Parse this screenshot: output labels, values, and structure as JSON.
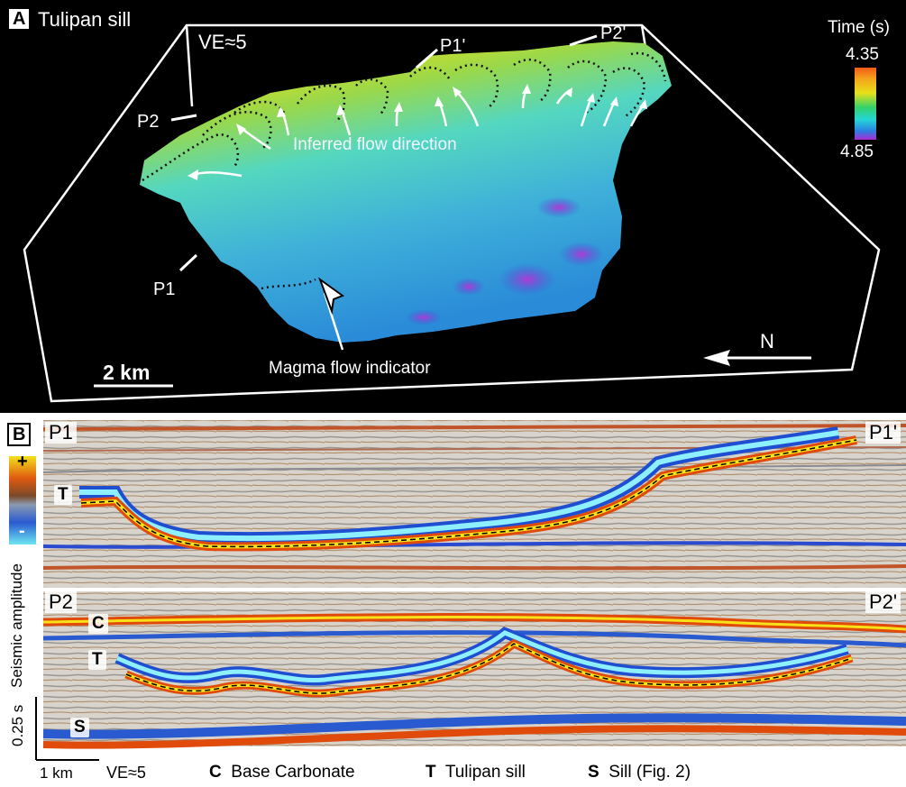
{
  "panel_a": {
    "label": "A",
    "title": "Tulipan sill",
    "ve": "VE≈5",
    "colorbar": {
      "title": "Time (s)",
      "top": "4.35",
      "bottom": "4.85"
    },
    "profile_labels": {
      "p1": "P1",
      "p1p": "P1'",
      "p2": "P2",
      "p2p": "P2'"
    },
    "annotation_flow": "Inferred flow direction",
    "annotation_indicator": "Magma flow indicator",
    "scale": "2 km",
    "north": "N"
  },
  "panel_b": {
    "label": "B",
    "polarity": {
      "plus": "+",
      "minus": "-"
    },
    "amplitude_label": "Seismic  amplitude",
    "section1": {
      "left": "P1",
      "right": "P1'",
      "tag_t": "T"
    },
    "section2": {
      "left": "P2",
      "right": "P2'",
      "tag_c": "C",
      "tag_t": "T",
      "tag_s": "S"
    },
    "time_scale": "0.25 s",
    "km_scale": "1 km",
    "ve": "VE≈5",
    "legend": [
      {
        "key": "C",
        "text": "Base Carbonate"
      },
      {
        "key": "T",
        "text": "Tulipan sill"
      },
      {
        "key": "S",
        "text": "Sill (Fig. 2)"
      }
    ]
  }
}
